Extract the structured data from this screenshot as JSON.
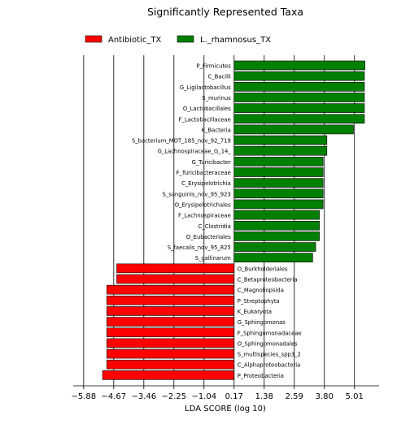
{
  "chart_data": {
    "type": "bar",
    "orientation": "horizontal",
    "title": "Significantly Represented Taxa",
    "xlabel": "LDA SCORE (log 10)",
    "xlim": [
      -6.3,
      6.0
    ],
    "xticks": [
      -5.88,
      -4.67,
      -3.46,
      -2.25,
      -1.04,
      0.17,
      1.38,
      2.59,
      3.8,
      5.01
    ],
    "xtick_labels": [
      "−5.88",
      "−4.67",
      "−3.46",
      "−2.25",
      "−1.04",
      "0.17",
      "1.38",
      "2.59",
      "3.80",
      "5.01"
    ],
    "grid": "vertical",
    "legend_position": "top",
    "series": [
      {
        "name": "Antibiotic_TX",
        "color": "#ff0000",
        "categories": [
          "O_Burkholderiales",
          "C_Betaproteobacteria",
          "C_Magnoliopsida",
          "P_Streptophyta",
          "K_Eukaryota",
          "G_Sphingomonas",
          "F_Sphingomonadaceae",
          "O_Sphingomonadales",
          "S_multispecies_spp3_2",
          "C_Alphaproteobacteria",
          "P_Proteobacteria"
        ],
        "values": [
          -4.55,
          -4.55,
          -4.95,
          -4.95,
          -4.95,
          -4.95,
          -4.95,
          -4.95,
          -4.95,
          -4.95,
          -5.12
        ]
      },
      {
        "name": "L._rhamnosus_TX",
        "color": "#008000",
        "categories": [
          "P_Firmicutes",
          "C_Bacilli",
          "G_Ligilactobacillus",
          "S_murinus",
          "O_Lactobacillales",
          "F_Lactobacillaceae",
          "K_Bacteria",
          "S_bacterium_MOT_185_nov_92_719",
          "G_Lachnospiraceae_G_14_",
          "G_Turicibacter",
          "F_Turicibacteraceae",
          "C_Erysipelotrichia",
          "S_sanguinis_nov_95_923",
          "O_Erysipelotrichales",
          "F_Lachnospiraceae",
          "C_Clostridia",
          "O_Eubacteriales",
          "S_faecalis_nov_95_825",
          "S_gallinarum"
        ],
        "values": [
          5.43,
          5.41,
          5.41,
          5.41,
          5.41,
          5.41,
          4.97,
          3.9,
          3.9,
          3.75,
          3.75,
          3.75,
          3.75,
          3.75,
          3.6,
          3.6,
          3.6,
          3.45,
          3.33
        ]
      }
    ]
  }
}
